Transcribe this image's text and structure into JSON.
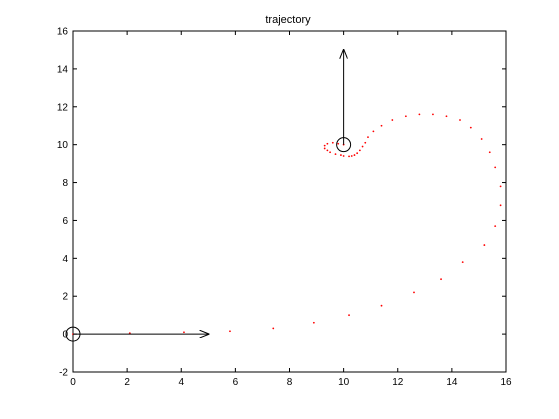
{
  "chart_data": {
    "type": "scatter",
    "title": "trajectory",
    "xlabel": "",
    "ylabel": "",
    "xlim": [
      0,
      16
    ],
    "ylim": [
      -2,
      16
    ],
    "grid": false,
    "legend": "none",
    "x_ticks": [
      0,
      2,
      4,
      6,
      8,
      10,
      12,
      14,
      16
    ],
    "y_ticks": [
      -2,
      0,
      2,
      4,
      6,
      8,
      10,
      12,
      14,
      16
    ],
    "point_color": "#ff0000",
    "marker_color": "#000000",
    "series": [
      {
        "name": "trajectory",
        "x": [
          0.0,
          2.1,
          4.1,
          5.8,
          7.4,
          8.9,
          10.2,
          11.4,
          12.6,
          13.6,
          14.4,
          15.2,
          15.6,
          15.8,
          15.8,
          15.6,
          15.4,
          15.1,
          14.7,
          14.3,
          13.8,
          13.3,
          12.8,
          12.3,
          11.8,
          11.4,
          11.1,
          10.9,
          10.8,
          10.7,
          10.6,
          10.5,
          10.4,
          10.3,
          10.2,
          10.0,
          9.9,
          9.7,
          9.5,
          9.4,
          9.3,
          9.3,
          9.4,
          9.6,
          9.8,
          10.0
        ],
        "y": [
          0.0,
          0.05,
          0.1,
          0.15,
          0.3,
          0.6,
          1.0,
          1.5,
          2.2,
          2.9,
          3.8,
          4.7,
          5.7,
          6.8,
          7.8,
          8.8,
          9.6,
          10.3,
          10.9,
          11.3,
          11.5,
          11.6,
          11.6,
          11.5,
          11.3,
          11.0,
          10.7,
          10.4,
          10.1,
          9.9,
          9.7,
          9.55,
          9.45,
          9.4,
          9.38,
          9.4,
          9.45,
          9.5,
          9.6,
          9.7,
          9.8,
          9.95,
          10.05,
          10.1,
          10.05,
          10.0
        ]
      }
    ],
    "start_marker": {
      "x": 0,
      "y": 0,
      "heading_dx": 5,
      "heading_dy": 0
    },
    "end_marker": {
      "x": 10,
      "y": 10,
      "heading_dx": 0,
      "heading_dy": 5
    }
  }
}
